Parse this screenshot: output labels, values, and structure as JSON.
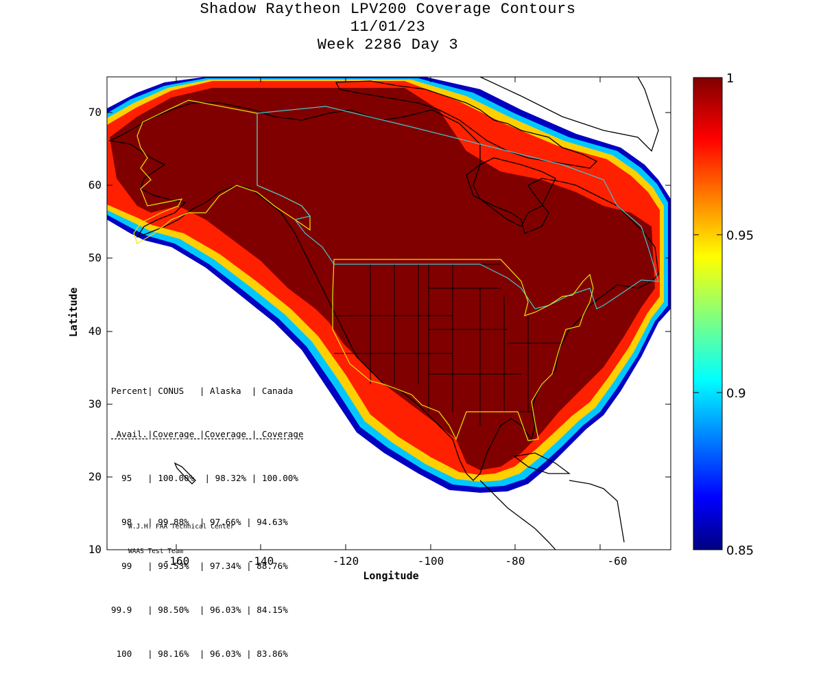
{
  "title": {
    "line1": "Shadow Raytheon LPV200 Coverage Contours",
    "line2": "11/01/23",
    "line3": "Week 2286 Day 3"
  },
  "axes": {
    "xlabel": "Longitude",
    "ylabel": "Latitude",
    "x_ticks": [
      "-160",
      "-140",
      "-120",
      "-100",
      "-80",
      "-60"
    ],
    "y_ticks": [
      "70",
      "60",
      "50",
      "40",
      "30",
      "20",
      "10"
    ],
    "xlim": [
      -175,
      -50
    ],
    "ylim": [
      10,
      75
    ]
  },
  "colorbar": {
    "labels": [
      "1",
      "0.95",
      "0.9",
      "0.85"
    ],
    "range": [
      0.85,
      1
    ],
    "colormap": "jet",
    "colors": [
      "#000080",
      "#0000ff",
      "#00ffff",
      "#ffff00",
      "#ff0000",
      "#800000"
    ]
  },
  "stats_table": {
    "header1": "Percent| CONUS   | Alaska  | Canada",
    "header2": " Avail.|Coverage |Coverage | Coverage",
    "rows": [
      "  95   | 100.00%  | 98.32% | 100.00%",
      "  98   | 99.88%  | 97.66% | 94.63%",
      "  99   | 99.53%  | 97.34% | 88.76%",
      "99.9   | 98.50%  | 96.03% | 84.15%",
      " 100   | 98.16%  | 96.03% | 83.86%"
    ]
  },
  "credit": {
    "line1": "W.J.H. FAA Technical Center",
    "line2": "WAAS Test Team"
  },
  "map_layers": [
    "coverage-contours",
    "coastlines",
    "us-state-borders",
    "conus-region-outline",
    "alaska-region-outline",
    "canada-region-outline"
  ],
  "region_outline_colors": {
    "conus": "#e8e800",
    "alaska": "#e8e800",
    "canada": "#40c8d0"
  }
}
